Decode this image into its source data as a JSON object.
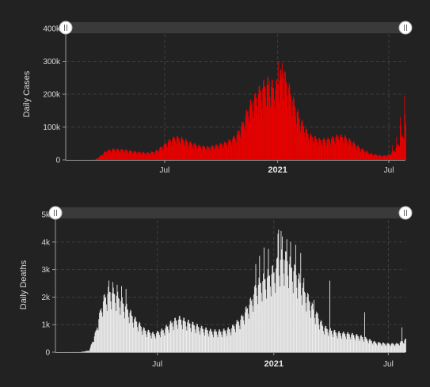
{
  "colors": {
    "background": "#222222",
    "cases": "#ee0000",
    "deaths": "#eeeeee"
  },
  "chart_data": [
    {
      "type": "bar",
      "ylabel": "Daily Cases",
      "color": "#ee0000",
      "ylim": [
        0,
        400000
      ],
      "yticks": [
        {
          "value": 0,
          "label": "0"
        },
        {
          "value": 100000,
          "label": "100k"
        },
        {
          "value": 200000,
          "label": "200k"
        },
        {
          "value": 300000,
          "label": "300k"
        },
        {
          "value": 400000,
          "label": "400k"
        }
      ],
      "xlim": [
        "2020-01-22",
        "2021-07-28"
      ],
      "xticks": [
        {
          "date": "2020-07-01",
          "label": "Jul",
          "bold": false
        },
        {
          "date": "2021-01-01",
          "label": "2021",
          "bold": true
        },
        {
          "date": "2021-07-01",
          "label": "Jul",
          "bold": false
        }
      ],
      "grid": true,
      "keypoints": [
        [
          "2020-01-22",
          0
        ],
        [
          "2020-03-01",
          100
        ],
        [
          "2020-03-10",
          1000
        ],
        [
          "2020-03-20",
          15000
        ],
        [
          "2020-03-28",
          28000
        ],
        [
          "2020-04-10",
          32000
        ],
        [
          "2020-04-25",
          30000
        ],
        [
          "2020-05-15",
          24000
        ],
        [
          "2020-06-01",
          21000
        ],
        [
          "2020-06-15",
          25000
        ],
        [
          "2020-06-25",
          38000
        ],
        [
          "2020-07-10",
          60000
        ],
        [
          "2020-07-18",
          68000
        ],
        [
          "2020-07-28",
          64000
        ],
        [
          "2020-08-10",
          52000
        ],
        [
          "2020-08-25",
          42000
        ],
        [
          "2020-09-10",
          38000
        ],
        [
          "2020-09-25",
          44000
        ],
        [
          "2020-10-10",
          52000
        ],
        [
          "2020-10-25",
          72000
        ],
        [
          "2020-11-05",
          110000
        ],
        [
          "2020-11-15",
          160000
        ],
        [
          "2020-11-25",
          185000
        ],
        [
          "2020-12-05",
          215000
        ],
        [
          "2020-12-15",
          230000
        ],
        [
          "2020-12-28",
          215000
        ],
        [
          "2021-01-08",
          260000
        ],
        [
          "2021-01-15",
          235000
        ],
        [
          "2021-01-25",
          180000
        ],
        [
          "2021-02-05",
          125000
        ],
        [
          "2021-02-20",
          75000
        ],
        [
          "2021-03-10",
          60000
        ],
        [
          "2021-03-25",
          62000
        ],
        [
          "2021-04-10",
          72000
        ],
        [
          "2021-04-20",
          68000
        ],
        [
          "2021-05-01",
          55000
        ],
        [
          "2021-05-15",
          35000
        ],
        [
          "2021-06-01",
          18000
        ],
        [
          "2021-06-20",
          12000
        ],
        [
          "2021-07-01",
          15000
        ],
        [
          "2021-07-10",
          30000
        ],
        [
          "2021-07-20",
          60000
        ],
        [
          "2021-07-28",
          100000
        ]
      ],
      "spikes": [
        [
          "2020-12-18",
          240000
        ],
        [
          "2021-01-02",
          300000
        ],
        [
          "2021-01-08",
          295000
        ],
        [
          "2021-01-09",
          265000
        ],
        [
          "2021-07-06",
          45000
        ],
        [
          "2021-07-13",
          70000
        ],
        [
          "2021-07-19",
          130000
        ],
        [
          "2021-07-20",
          105000
        ],
        [
          "2021-07-26",
          195000
        ],
        [
          "2021-07-27",
          140000
        ]
      ]
    },
    {
      "type": "bar",
      "ylabel": "Daily Deaths",
      "color": "#eeeeee",
      "ylim": [
        0,
        5000
      ],
      "yticks": [
        {
          "value": 0,
          "label": "0"
        },
        {
          "value": 1000,
          "label": "1k"
        },
        {
          "value": 2000,
          "label": "2k"
        },
        {
          "value": 3000,
          "label": "3k"
        },
        {
          "value": 4000,
          "label": "4k"
        },
        {
          "value": 5000,
          "label": "5k"
        }
      ],
      "xlim": [
        "2020-01-22",
        "2021-07-28"
      ],
      "xticks": [
        {
          "date": "2020-07-01",
          "label": "Jul",
          "bold": false
        },
        {
          "date": "2021-01-01",
          "label": "2021",
          "bold": true
        },
        {
          "date": "2021-07-01",
          "label": "Jul",
          "bold": false
        }
      ],
      "grid": true,
      "keypoints": [
        [
          "2020-01-22",
          0
        ],
        [
          "2020-03-01",
          2
        ],
        [
          "2020-03-15",
          60
        ],
        [
          "2020-03-25",
          700
        ],
        [
          "2020-04-05",
          1800
        ],
        [
          "2020-04-15",
          2200
        ],
        [
          "2020-04-25",
          2100
        ],
        [
          "2020-05-10",
          1700
        ],
        [
          "2020-05-25",
          1200
        ],
        [
          "2020-06-10",
          800
        ],
        [
          "2020-06-25",
          650
        ],
        [
          "2020-07-10",
          800
        ],
        [
          "2020-07-25",
          1100
        ],
        [
          "2020-08-05",
          1200
        ],
        [
          "2020-08-20",
          1050
        ],
        [
          "2020-09-10",
          850
        ],
        [
          "2020-09-25",
          750
        ],
        [
          "2020-10-10",
          750
        ],
        [
          "2020-10-25",
          850
        ],
        [
          "2020-11-10",
          1200
        ],
        [
          "2020-11-25",
          1800
        ],
        [
          "2020-12-05",
          2400
        ],
        [
          "2020-12-20",
          2700
        ],
        [
          "2021-01-01",
          2900
        ],
        [
          "2021-01-12",
          3400
        ],
        [
          "2021-01-22",
          3300
        ],
        [
          "2021-02-05",
          2800
        ],
        [
          "2021-02-20",
          2100
        ],
        [
          "2021-03-05",
          1500
        ],
        [
          "2021-03-20",
          900
        ],
        [
          "2021-04-10",
          700
        ],
        [
          "2021-05-01",
          650
        ],
        [
          "2021-05-20",
          550
        ],
        [
          "2021-06-10",
          350
        ],
        [
          "2021-06-30",
          300
        ],
        [
          "2021-07-15",
          300
        ],
        [
          "2021-07-28",
          450
        ]
      ],
      "spikes": [
        [
          "2020-04-15",
          2600
        ],
        [
          "2020-04-21",
          2550
        ],
        [
          "2020-04-28",
          2450
        ],
        [
          "2020-05-05",
          2400
        ],
        [
          "2020-05-12",
          2300
        ],
        [
          "2020-12-03",
          3200
        ],
        [
          "2020-12-09",
          3500
        ],
        [
          "2020-12-16",
          3800
        ],
        [
          "2020-12-23",
          3750
        ],
        [
          "2021-01-07",
          4300
        ],
        [
          "2021-01-08",
          4450
        ],
        [
          "2021-01-12",
          4400
        ],
        [
          "2021-01-14",
          4200
        ],
        [
          "2021-01-21",
          4100
        ],
        [
          "2021-01-27",
          4000
        ],
        [
          "2021-02-04",
          3900
        ],
        [
          "2021-02-12",
          3600
        ],
        [
          "2021-02-17",
          2700
        ],
        [
          "2021-03-05",
          1900
        ],
        [
          "2021-03-11",
          1400
        ],
        [
          "2021-03-30",
          2600
        ],
        [
          "2021-05-24",
          1450
        ],
        [
          "2021-07-22",
          900
        ]
      ]
    }
  ]
}
